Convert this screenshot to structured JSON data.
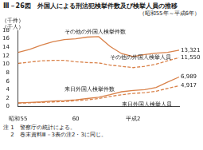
{
  "chart_data": {
    "type": "line",
    "title": "Ⅲ－26図　外国人による刑法犯検挙件数及び検挙人員の推移",
    "subtitle": "（昭和55年～平成6年）",
    "y_label": [
      "（千件）",
      "（千人）"
    ],
    "notes": [
      "注 1　警察庁の統計による。",
      "　 2　巻末資料Ⅲ－3表の注2・3に同じ。"
    ],
    "categories": [
      "昭和55",
      null,
      null,
      null,
      null,
      "60",
      null,
      null,
      null,
      null,
      "平成2",
      null,
      null,
      null,
      null
    ],
    "series": [
      {
        "name": "その他の外国人検挙件数",
        "color": "#d9824a",
        "line_style": "solid",
        "values": [
          12.8,
          13.5,
          14.5,
          15.3,
          15.8,
          16.0,
          16.4,
          16.5,
          14.2,
          12.5,
          11.8,
          12.3,
          12.6,
          12.8,
          13.321
        ],
        "value_labels": [
          null,
          null,
          null,
          null,
          null,
          null,
          null,
          null,
          null,
          null,
          null,
          null,
          null,
          null,
          "13,321"
        ]
      },
      {
        "name": "その他の外国人検挙人員",
        "color": "#d9824a",
        "line_style": "dashed",
        "values": [
          10.2,
          10.5,
          10.8,
          10.9,
          10.9,
          10.6,
          10.4,
          10.3,
          9.8,
          9.5,
          9.2,
          9.5,
          10.0,
          10.8,
          11.55
        ],
        "value_labels": [
          null,
          null,
          null,
          null,
          null,
          null,
          null,
          null,
          null,
          null,
          null,
          null,
          null,
          null,
          "11,550"
        ]
      },
      {
        "name": "来日外国人検挙件数",
        "color": "#d9824a",
        "line_style": "solid",
        "values": [
          0.9,
          1.0,
          1.1,
          1.3,
          1.4,
          1.6,
          1.9,
          2.2,
          2.8,
          3.5,
          3.8,
          4.0,
          4.5,
          5.8,
          6.989
        ],
        "value_labels": [
          null,
          null,
          null,
          null,
          null,
          null,
          null,
          null,
          null,
          null,
          null,
          null,
          null,
          null,
          "6,989"
        ]
      },
      {
        "name": "来日外国人検挙人員",
        "color": "#d9824a",
        "line_style": "dashed",
        "values": [
          0.8,
          0.9,
          1.0,
          1.1,
          1.2,
          1.4,
          1.6,
          1.9,
          2.4,
          2.8,
          3.1,
          3.3,
          3.6,
          4.3,
          4.917
        ],
        "value_labels": [
          null,
          null,
          null,
          null,
          null,
          null,
          null,
          null,
          null,
          null,
          null,
          null,
          null,
          null,
          "4,917"
        ]
      }
    ],
    "ylim": [
      0,
      18
    ],
    "yticks": [
      0,
      2,
      4,
      6,
      8,
      10,
      12,
      14,
      16,
      18
    ],
    "grid": false,
    "data_labels": true
  }
}
